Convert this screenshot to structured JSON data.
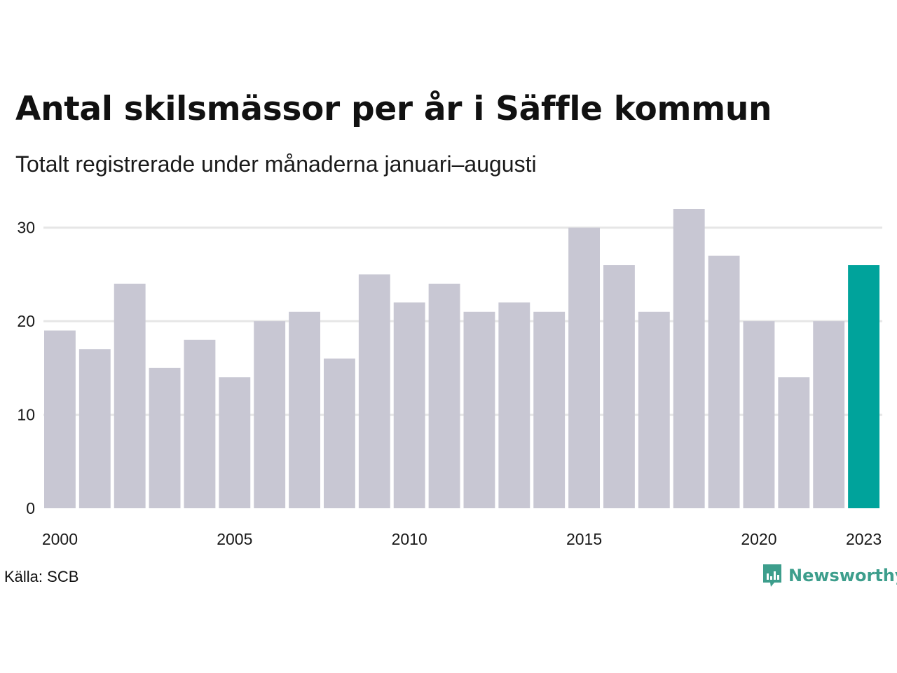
{
  "title": "Antal skilsmässor per år i Säffle kommun",
  "subtitle": "Totalt registrerade under månaderna januari–augusti",
  "source": "Källa: SCB",
  "brand": {
    "name": "Newsworthy",
    "icon": "newsworthy-logo-icon",
    "color": "#3d9e8c"
  },
  "colors": {
    "bar": "#c8c7d3",
    "highlight": "#00a39b",
    "grid": "#e6e6e6",
    "axis_text": "#1a1a1a"
  },
  "chart_data": {
    "type": "bar",
    "categories": [
      "2000",
      "2001",
      "2002",
      "2003",
      "2004",
      "2005",
      "2006",
      "2007",
      "2008",
      "2009",
      "2010",
      "2011",
      "2012",
      "2013",
      "2014",
      "2015",
      "2016",
      "2017",
      "2018",
      "2019",
      "2020",
      "2021",
      "2022",
      "2023"
    ],
    "values": [
      19,
      17,
      24,
      15,
      18,
      14,
      20,
      21,
      16,
      25,
      22,
      24,
      21,
      22,
      21,
      30,
      26,
      21,
      32,
      27,
      20,
      14,
      20,
      26
    ],
    "highlight": "2023",
    "x_tick_labels": [
      "2000",
      "2005",
      "2010",
      "2015",
      "2020",
      "2023"
    ],
    "y_ticks": [
      0,
      10,
      20,
      30
    ],
    "ylim": [
      0,
      32
    ],
    "grid": true,
    "legend": "none"
  }
}
